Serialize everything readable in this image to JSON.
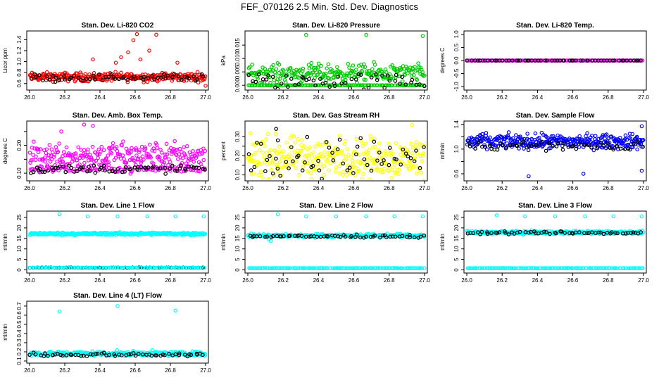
{
  "page_title": "FEF_070126  2.5 Min. Std. Dev. Diagnostics",
  "chart_data": [
    {
      "type": "scatter",
      "title": "Stan. Dev. Li-820 CO2",
      "ylabel": "Licor ppm",
      "xlim": [
        26.0,
        27.0
      ],
      "ylim": [
        0.52,
        1.52
      ],
      "xticks": [
        "26.0",
        "26.2",
        "26.4",
        "26.6",
        "26.8",
        "27.0"
      ],
      "yticks": [
        0.6,
        0.8,
        1.0,
        1.2,
        1.4
      ],
      "ytick_labels": [
        "0.6",
        "0.8",
        "1.0",
        "1.2",
        "1.4"
      ],
      "series": [
        {
          "color": "#ff0000",
          "y_center": 0.72,
          "y_spread": 0.06,
          "count": 300,
          "outliers": [
            [
              26.36,
              1.04
            ],
            [
              26.52,
              1.08
            ],
            [
              26.56,
              1.17
            ],
            [
              26.59,
              1.39
            ],
            [
              26.63,
              1.04
            ],
            [
              26.68,
              1.2
            ],
            [
              26.72,
              1.49
            ],
            [
              26.61,
              1.5
            ],
            [
              26.49,
              0.98
            ],
            [
              26.84,
              0.98
            ],
            [
              27.0,
              0.56
            ]
          ]
        },
        {
          "color": "#000000",
          "y_center": 0.71,
          "y_spread": 0.05,
          "count": 60,
          "outliers": []
        }
      ]
    },
    {
      "type": "scatter",
      "title": "Stan. Dev. Li-820 Pressure",
      "ylabel": "kPa",
      "xlim": [
        26.0,
        27.0
      ],
      "ylim": [
        -0.001,
        0.0195
      ],
      "xticks": [
        "26.0",
        "26.2",
        "26.4",
        "26.6",
        "26.8",
        "27.0"
      ],
      "yticks": [
        0.0,
        0.005,
        0.01,
        0.015
      ],
      "ytick_labels": [
        "0.000",
        "0.005",
        "0.010",
        "0.015"
      ],
      "series": [
        {
          "color": "#00cc00",
          "y_center": 0.0045,
          "y_spread": 0.0025,
          "count": 260,
          "outliers": [
            [
              26.33,
              0.0188
            ],
            [
              26.67,
              0.0188
            ],
            [
              26.99,
              0.0184
            ]
          ]
        },
        {
          "color": "#00cc00",
          "y_center": 0.0,
          "y_spread": 0.0,
          "count": 120,
          "outliers": []
        },
        {
          "color": "#000000",
          "y_center": 0.0015,
          "y_spread": 0.0025,
          "count": 55,
          "outliers": []
        }
      ]
    },
    {
      "type": "scatter",
      "title": "Stan. Dev. Li-820 Temp.",
      "ylabel": "degrees C",
      "xlim": [
        26.0,
        27.0
      ],
      "ylim": [
        -1.05,
        1.05
      ],
      "xticks": [
        "26.0",
        "26.2",
        "26.4",
        "26.6",
        "26.8",
        "27.0"
      ],
      "yticks": [
        -1.0,
        -0.5,
        0.0,
        0.5,
        1.0
      ],
      "ytick_labels": [
        "-1.0",
        "-0.5",
        "0.0",
        "0.5",
        "1.0"
      ],
      "series": [
        {
          "color": "#ff00ff",
          "y_center": 0.0,
          "y_spread": 0.0,
          "count": 150,
          "outliers": []
        },
        {
          "color": "#000000",
          "y_center": 0.0,
          "y_spread": 0.0,
          "count": 60,
          "outliers": []
        }
      ]
    },
    {
      "type": "scatter",
      "title": "Stan. Dev. Amb. Box Temp.",
      "ylabel": "degrees C",
      "xlim": [
        26.0,
        27.0
      ],
      "ylim": [
        0.08,
        0.28
      ],
      "xticks": [
        "26.0",
        "26.2",
        "26.4",
        "26.6",
        "26.8",
        "27.0"
      ],
      "yticks": [
        0.1,
        0.15,
        0.2,
        0.25
      ],
      "ytick_labels": [
        "0.10",
        "",
        "0.20",
        ""
      ],
      "series": [
        {
          "color": "#ff00ff",
          "y_center": 0.165,
          "y_spread": 0.035,
          "count": 260,
          "outliers": [
            [
              26.31,
              0.275
            ],
            [
              26.36,
              0.27
            ],
            [
              26.18,
              0.25
            ]
          ]
        },
        {
          "color": "#ff00ff",
          "y_center": 0.115,
          "y_spread": 0.01,
          "count": 120,
          "outliers": []
        },
        {
          "color": "#000000",
          "y_center": 0.115,
          "y_spread": 0.012,
          "count": 70,
          "outliers": []
        }
      ]
    },
    {
      "type": "scatter",
      "title": "Stan. Dev. Gas Stream RH",
      "ylabel": "percent",
      "xlim": [
        26.0,
        27.0
      ],
      "ylim": [
        0.08,
        0.37
      ],
      "xticks": [
        "26.0",
        "26.2",
        "26.4",
        "26.6",
        "26.8",
        "27.0"
      ],
      "yticks": [
        0.1,
        0.15,
        0.2,
        0.25,
        0.3
      ],
      "ytick_labels": [
        "0.10",
        "",
        "0.20",
        "",
        "0.30"
      ],
      "series": [
        {
          "color": "#ffff00",
          "y_center": 0.19,
          "y_spread": 0.08,
          "count": 320,
          "outliers": [
            [
              26.93,
              0.36
            ]
          ]
        },
        {
          "color": "#000000",
          "y_center": 0.19,
          "y_spread": 0.08,
          "count": 60,
          "outliers": [
            [
              26.16,
              0.34
            ],
            [
              26.17,
              0.28
            ]
          ]
        }
      ]
    },
    {
      "type": "scatter",
      "title": "Stan. Dev. Sample Flow",
      "ylabel": "ml/min",
      "xlim": [
        26.0,
        27.0
      ],
      "ylim": [
        0.52,
        1.42
      ],
      "xticks": [
        "26.0",
        "26.2",
        "26.4",
        "26.6",
        "26.8",
        "27.0"
      ],
      "yticks": [
        0.6,
        0.8,
        1.0,
        1.2,
        1.4
      ],
      "ytick_labels": [
        "0.6",
        "",
        "1.0",
        "",
        "1.4"
      ],
      "series": [
        {
          "color": "#0000ff",
          "y_center": 1.12,
          "y_spread": 0.09,
          "count": 330,
          "outliers": [
            [
              26.35,
              0.56
            ],
            [
              26.66,
              0.6
            ],
            [
              26.99,
              0.65
            ],
            [
              26.99,
              1.37
            ]
          ]
        },
        {
          "color": "#000000",
          "y_center": 1.05,
          "y_spread": 0.07,
          "count": 60,
          "outliers": []
        }
      ]
    },
    {
      "type": "scatter",
      "title": "Stan. Dev. Line 1 Flow",
      "ylabel": "ml/min",
      "xlim": [
        26.0,
        27.0
      ],
      "ylim": [
        -0.5,
        27
      ],
      "xticks": [
        "26.0",
        "26.2",
        "26.4",
        "26.6",
        "26.8",
        "27.0"
      ],
      "yticks": [
        0,
        5,
        10,
        15,
        20,
        25
      ],
      "ytick_labels": [
        "0",
        "5",
        "10",
        "15",
        "20",
        "25"
      ],
      "series": [
        {
          "color": "#00ffff",
          "y_center": 17.2,
          "y_spread": 0.5,
          "count": 300,
          "outliers": [
            [
              26.17,
              26.5
            ],
            [
              26.33,
              25.5
            ],
            [
              26.5,
              25.5
            ],
            [
              26.67,
              25.5
            ],
            [
              26.83,
              25.5
            ],
            [
              26.99,
              25.5
            ]
          ]
        },
        {
          "color": "#000000",
          "y_center": 1.0,
          "y_spread": 0.1,
          "count": 60,
          "outliers": []
        },
        {
          "color": "#00ffff",
          "y_center": 1.0,
          "y_spread": 0.0,
          "count": 100,
          "outliers": []
        }
      ]
    },
    {
      "type": "scatter",
      "title": "Stan. Dev. Line 2 Flow",
      "ylabel": "ml/min",
      "xlim": [
        26.0,
        27.0
      ],
      "ylim": [
        -0.5,
        27
      ],
      "xticks": [
        "26.0",
        "26.2",
        "26.4",
        "26.6",
        "26.8",
        "27.0"
      ],
      "yticks": [
        0,
        5,
        10,
        15,
        20,
        25
      ],
      "ytick_labels": [
        "0",
        "5",
        "10",
        "15",
        "20",
        "25"
      ],
      "series": [
        {
          "color": "#00ffff",
          "y_center": 16.3,
          "y_spread": 0.6,
          "count": 300,
          "outliers": [
            [
              26.17,
              26.5
            ],
            [
              26.33,
              25.5
            ],
            [
              26.5,
              25.5
            ],
            [
              26.67,
              25.5
            ],
            [
              26.83,
              25.5
            ],
            [
              26.99,
              25.5
            ],
            [
              26.13,
              13.8
            ],
            [
              26.12,
              14.5
            ]
          ]
        },
        {
          "color": "#000000",
          "y_center": 16.0,
          "y_spread": 0.5,
          "count": 60,
          "outliers": []
        },
        {
          "color": "#00ffff",
          "y_center": 0.8,
          "y_spread": 0.05,
          "count": 120,
          "outliers": []
        }
      ]
    },
    {
      "type": "scatter",
      "title": "Stan. Dev. Line 3 Flow",
      "ylabel": "ml/min",
      "xlim": [
        26.0,
        27.0
      ],
      "ylim": [
        -0.5,
        27
      ],
      "xticks": [
        "26.0",
        "26.2",
        "26.4",
        "26.6",
        "26.8",
        "27.0"
      ],
      "yticks": [
        0,
        5,
        10,
        15,
        20,
        25
      ],
      "ytick_labels": [
        "0",
        "5",
        "10",
        "15",
        "20",
        "25"
      ],
      "series": [
        {
          "color": "#00ffff",
          "y_center": 17.8,
          "y_spread": 0.6,
          "count": 300,
          "outliers": [
            [
              26.17,
              26.0
            ],
            [
              26.33,
              25.5
            ],
            [
              26.5,
              25.5
            ],
            [
              26.67,
              25.5
            ],
            [
              26.83,
              25.5
            ],
            [
              26.99,
              25.5
            ]
          ]
        },
        {
          "color": "#000000",
          "y_center": 17.6,
          "y_spread": 0.5,
          "count": 60,
          "outliers": []
        },
        {
          "color": "#00ffff",
          "y_center": 0.8,
          "y_spread": 0.05,
          "count": 120,
          "outliers": []
        }
      ]
    },
    {
      "type": "scatter",
      "title": "Stan. Dev. Line 4 (LT) Flow",
      "ylabel": "ml/min",
      "xlim": [
        26.0,
        27.0
      ],
      "ylim": [
        0.1,
        0.73
      ],
      "xticks": [
        "26.0",
        "26.2",
        "26.4",
        "26.6",
        "26.8",
        "27.0"
      ],
      "yticks": [
        0.1,
        0.2,
        0.3,
        0.4,
        0.5,
        0.6,
        0.7
      ],
      "ytick_labels": [
        "0.1",
        "0.2",
        "0.3",
        "0.4",
        "0.5",
        "0.6",
        "0.7"
      ],
      "series": [
        {
          "color": "#00ffff",
          "y_center": 0.18,
          "y_spread": 0.02,
          "count": 300,
          "outliers": [
            [
              26.17,
              0.64
            ],
            [
              26.5,
              0.7
            ],
            [
              26.83,
              0.65
            ]
          ]
        },
        {
          "color": "#000000",
          "y_center": 0.17,
          "y_spread": 0.015,
          "count": 60,
          "outliers": []
        }
      ]
    }
  ]
}
